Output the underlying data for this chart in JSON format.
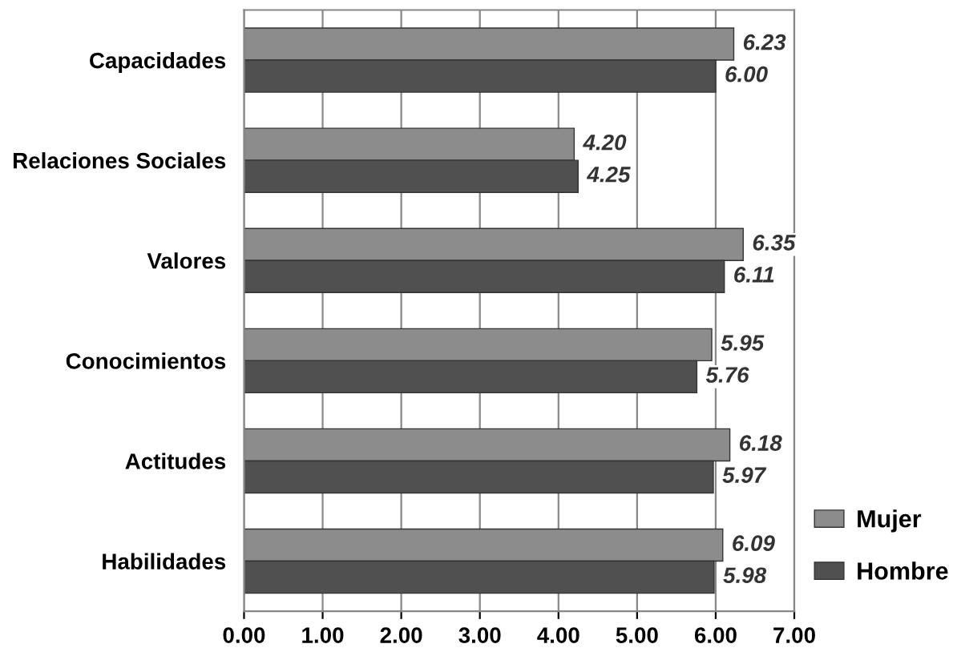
{
  "chart_data": {
    "type": "bar",
    "orientation": "horizontal",
    "categories": [
      "Capacidades",
      "Relaciones Sociales",
      "Valores",
      "Conocimientos",
      "Actitudes",
      "Habilidades"
    ],
    "series": [
      {
        "name": "Mujer",
        "color": "#8c8c8c",
        "values": [
          6.23,
          4.2,
          6.35,
          5.95,
          6.18,
          6.09
        ],
        "value_labels": [
          "6.23",
          "4.20",
          "6.35",
          "5.95",
          "6.18",
          "6.09"
        ]
      },
      {
        "name": "Hombre",
        "color": "#505050",
        "values": [
          6.0,
          4.25,
          6.11,
          5.76,
          5.97,
          5.98
        ],
        "value_labels": [
          "6.00",
          "4.25",
          "6.11",
          "5.76",
          "5.97",
          "5.98"
        ]
      }
    ],
    "xlim": [
      0,
      7
    ],
    "xticks": [
      {
        "value": 0,
        "label": "0.00"
      },
      {
        "value": 1,
        "label": "1.00"
      },
      {
        "value": 2,
        "label": "2.00"
      },
      {
        "value": 3,
        "label": "3.00"
      },
      {
        "value": 4,
        "label": "4.00"
      },
      {
        "value": 5,
        "label": "5.00"
      },
      {
        "value": 6,
        "label": "6.00"
      },
      {
        "value": 7,
        "label": "7.00"
      }
    ],
    "grid": "x",
    "legend": "bottom right"
  }
}
